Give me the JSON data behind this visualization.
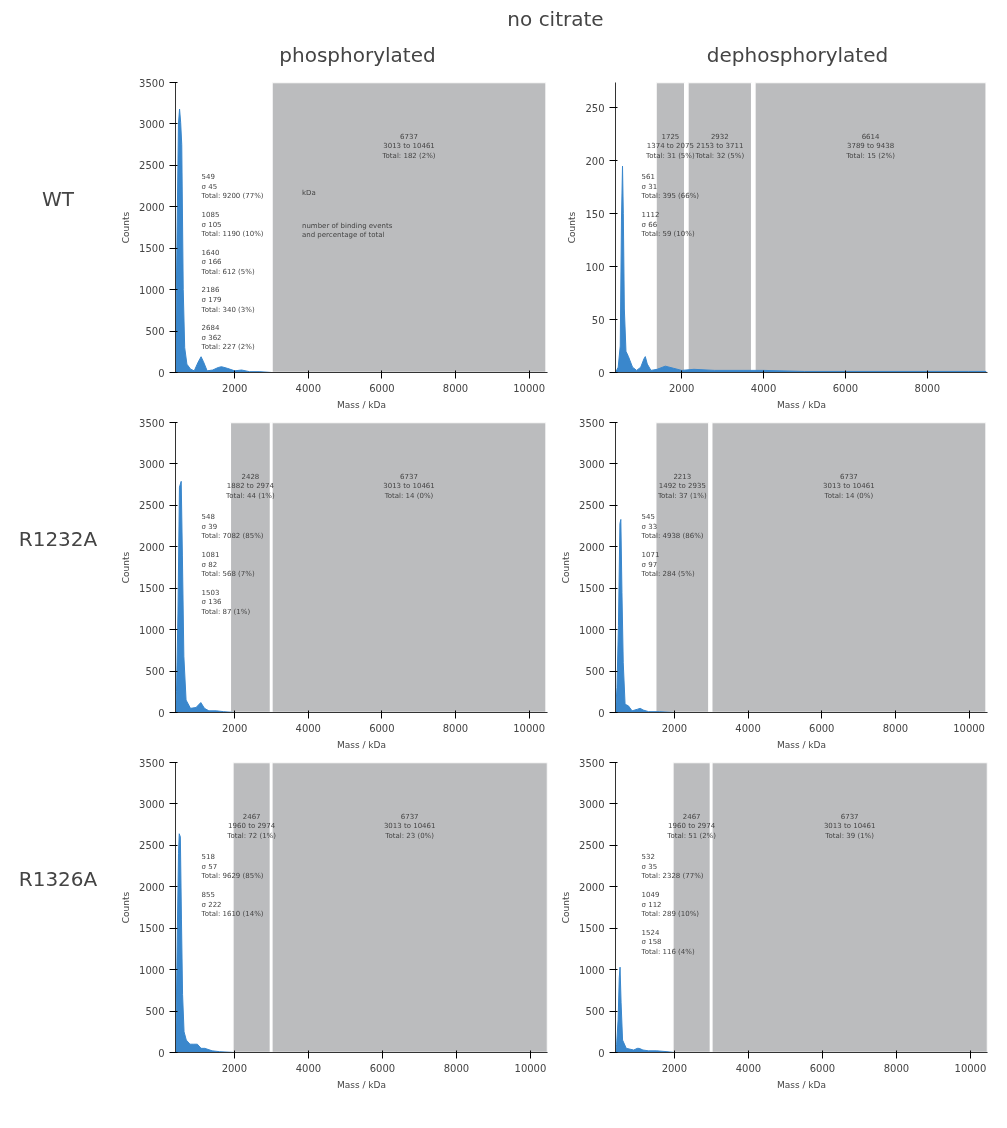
{
  "chart_data": [
    {
      "type": "other",
      "title": "no citrate",
      "annotations": [
        "phosphorylated",
        "dephosphorylated",
        "WT",
        "R1232A",
        "R1326A"
      ]
    },
    {
      "type": "area",
      "xlabel": "Mass / kDa",
      "ylabel": "Counts",
      "xlim": [
        390,
        10500
      ],
      "ylim": [
        0,
        3500
      ],
      "xticks": [
        2000,
        4000,
        6000,
        8000,
        10000
      ],
      "yticks": [
        0,
        500,
        1000,
        1500,
        2000,
        2500,
        3000,
        3500
      ],
      "grid": false,
      "series": [
        {
          "color": "#3a87cc",
          "x": [
            390,
            430,
            470,
            500,
            530,
            560,
            600,
            640,
            700,
            800,
            900,
            1000,
            1085,
            1150,
            1250,
            1400,
            1550,
            1640,
            1800,
            2000,
            2186,
            2400,
            2684,
            3000,
            3500,
            4000,
            10500
          ],
          "values": [
            170,
            1600,
            3000,
            3180,
            3020,
            2750,
            1000,
            300,
            100,
            40,
            20,
            120,
            190,
            130,
            20,
            30,
            60,
            70,
            50,
            20,
            30,
            10,
            10,
            0,
            0,
            0,
            0
          ]
        }
      ],
      "bands": [
        {
          "axis": "x",
          "from": 3013,
          "to": 10461,
          "label": "6737\n3013 to 10461\nTotal: 182 (2%)",
          "color": "#bbbcbe"
        }
      ],
      "annotations": [
        "549\nσ 45\nTotal: 9200 (77%)",
        "1085\nσ 105\nTotal: 1190 (10%)",
        "1640\nσ 166\nTotal: 612 (5%)",
        "2186\nσ 179\nTotal: 340 (3%)",
        "2684\nσ 362\nTotal: 227 (2%)",
        "kDa",
        "number of binding events\nand percentage of total"
      ]
    },
    {
      "type": "area",
      "xlabel": "Mass / kDa",
      "ylabel": "Counts",
      "xlim": [
        384,
        9470
      ],
      "ylim": [
        0,
        274
      ],
      "xticks": [
        2000,
        4000,
        6000,
        8000
      ],
      "yticks": [
        0,
        50,
        100,
        150,
        200,
        250
      ],
      "grid": false,
      "series": [
        {
          "color": "#3a87cc",
          "x": [
            384,
            450,
            500,
            530,
            555,
            575,
            600,
            640,
            700,
            800,
            900,
            1000,
            1080,
            1112,
            1160,
            1250,
            1400,
            1600,
            1800,
            2000,
            2300,
            2800,
            3500,
            4000,
            5000,
            6000,
            9000,
            9438
          ],
          "values": [
            0,
            5,
            25,
            145,
            195,
            150,
            60,
            20,
            15,
            5,
            2,
            5,
            13,
            15,
            8,
            2,
            3,
            6,
            4,
            2,
            3,
            2,
            2,
            2,
            1,
            1,
            1,
            1
          ]
        }
      ],
      "bands": [
        {
          "axis": "x",
          "from": 1374,
          "to": 2075,
          "label": "1725\n1374 to 2075\nTotal: 31 (5%)",
          "color": "#bbbcbe"
        },
        {
          "axis": "x",
          "from": 2153,
          "to": 3711,
          "label": "2932\n2153 to 3711\nTotal: 32 (5%)",
          "color": "#bbbcbe"
        },
        {
          "axis": "x",
          "from": 3789,
          "to": 9438,
          "label": "6614\n3789 to 9438\nTotal: 15 (2%)",
          "color": "#bbbcbe"
        }
      ],
      "annotations": [
        "561\nσ 31\nTotal: 395 (66%)",
        "1112\nσ 66\nTotal: 59 (10%)"
      ]
    },
    {
      "type": "area",
      "xlabel": "Mass / kDa",
      "ylabel": "Counts",
      "xlim": [
        393,
        10500
      ],
      "ylim": [
        0,
        3500
      ],
      "xticks": [
        2000,
        4000,
        6000,
        8000,
        10000
      ],
      "yticks": [
        0,
        500,
        1000,
        1500,
        2000,
        2500,
        3000,
        3500
      ],
      "grid": false,
      "series": [
        {
          "color": "#3a87cc",
          "x": [
            393,
            420,
            460,
            500,
            548,
            580,
            620,
            680,
            800,
            950,
            1081,
            1180,
            1300,
            1503,
            1700,
            2000,
            2500,
            3000,
            10500
          ],
          "values": [
            0,
            250,
            1200,
            2720,
            2790,
            1900,
            680,
            150,
            50,
            60,
            120,
            50,
            20,
            20,
            10,
            0,
            0,
            0,
            0
          ]
        }
      ],
      "bands": [
        {
          "axis": "x",
          "from": 1882,
          "to": 2974,
          "label": "2428\n1882 to 2974\nTotal: 44 (1%)",
          "color": "#bbbcbe"
        },
        {
          "axis": "x",
          "from": 3013,
          "to": 10461,
          "label": "6737\n3013 to 10461\nTotal: 14 (0%)",
          "color": "#bbbcbe"
        }
      ],
      "annotations": [
        "548\nσ 39\nTotal: 7082 (85%)",
        "1081\nσ 82\nTotal: 568 (7%)",
        "1503\nσ 136\nTotal: 87 (1%)"
      ]
    },
    {
      "type": "area",
      "xlabel": "Mass / kDa",
      "ylabel": "Counts",
      "xlim": [
        400,
        10500
      ],
      "ylim": [
        0,
        3500
      ],
      "xticks": [
        2000,
        4000,
        6000,
        8000,
        10000
      ],
      "yticks": [
        0,
        500,
        1000,
        1500,
        2000,
        2500,
        3000,
        3500
      ],
      "grid": false,
      "series": [
        {
          "color": "#3a87cc",
          "x": [
            400,
            440,
            480,
            520,
            545,
            575,
            610,
            660,
            750,
            850,
            1000,
            1071,
            1150,
            1300,
            1600,
            2000,
            3000,
            10500
          ],
          "values": [
            0,
            300,
            1050,
            2280,
            2330,
            1450,
            600,
            100,
            80,
            20,
            40,
            50,
            30,
            10,
            10,
            0,
            0,
            0
          ]
        }
      ],
      "bands": [
        {
          "axis": "x",
          "from": 1492,
          "to": 2935,
          "label": "2213\n1492 to 2935\nTotal: 37 (1%)",
          "color": "#bbbcbe"
        },
        {
          "axis": "x",
          "from": 3013,
          "to": 10461,
          "label": "6737\n3013 to 10461\nTotal: 14 (0%)",
          "color": "#bbbcbe"
        }
      ],
      "annotations": [
        "545\nσ 33\nTotal: 4938 (86%)",
        "1071\nσ 97\nTotal: 284 (5%)"
      ]
    },
    {
      "type": "area",
      "xlabel": "Mass / kDa",
      "ylabel": "Counts",
      "xlim": [
        409,
        10461
      ],
      "ylim": [
        0,
        3500
      ],
      "xticks": [
        2000,
        4000,
        6000,
        8000,
        10000
      ],
      "yticks": [
        0,
        500,
        1000,
        1500,
        2000,
        2500,
        3000,
        3500
      ],
      "grid": false,
      "series": [
        {
          "color": "#3a87cc",
          "x": [
            409,
            430,
            460,
            490,
            510,
            540,
            570,
            600,
            640,
            700,
            800,
            900,
            1000,
            1100,
            1200,
            1400,
            1600,
            2000,
            2500,
            3000,
            3500,
            10461
          ],
          "values": [
            0,
            500,
            1500,
            2400,
            2640,
            2600,
            1600,
            700,
            250,
            150,
            100,
            100,
            100,
            50,
            50,
            20,
            10,
            0,
            0,
            0,
            0,
            0
          ]
        }
      ],
      "bands": [
        {
          "axis": "x",
          "from": 1960,
          "to": 2974,
          "label": "2467\n1960 to 2974\nTotal: 72 (1%)",
          "color": "#bbbcbe"
        },
        {
          "axis": "x",
          "from": 3013,
          "to": 10461,
          "label": "6737\n3013 to 10461\nTotal: 23 (0%)",
          "color": "#bbbcbe"
        }
      ],
      "annotations": [
        "518\nσ 57\nTotal: 9629 (85%)",
        "855\nσ 222\nTotal: 1610 (14%)"
      ]
    },
    {
      "type": "area",
      "xlabel": "Mass / kDa",
      "ylabel": "Counts",
      "xlim": [
        409,
        10461
      ],
      "ylim": [
        0,
        3500
      ],
      "xticks": [
        2000,
        4000,
        6000,
        8000,
        10000
      ],
      "yticks": [
        0,
        500,
        1000,
        1500,
        2000,
        2500,
        3000,
        3500
      ],
      "grid": false,
      "series": [
        {
          "color": "#3a87cc",
          "x": [
            409,
            440,
            480,
            510,
            532,
            560,
            600,
            700,
            900,
            1000,
            1049,
            1150,
            1300,
            1524,
            1800,
            2000,
            2500,
            3000,
            3500,
            10461
          ],
          "values": [
            0,
            100,
            400,
            900,
            1030,
            600,
            150,
            50,
            30,
            50,
            50,
            30,
            20,
            20,
            10,
            0,
            0,
            0,
            0,
            0
          ]
        }
      ],
      "bands": [
        {
          "axis": "x",
          "from": 1960,
          "to": 2974,
          "label": "2467\n1960 to 2974\nTotal: 51 (2%)",
          "color": "#bbbcbe"
        },
        {
          "axis": "x",
          "from": 3013,
          "to": 10461,
          "label": "6737\n3013 to 10461\nTotal: 39 (1%)",
          "color": "#bbbcbe"
        }
      ],
      "annotations": [
        "532\nσ 35\nTotal: 2328 (77%)",
        "1049\nσ 112\nTotal: 289 (10%)",
        "1524\nσ 158\nTotal: 116 (4%)"
      ]
    }
  ]
}
